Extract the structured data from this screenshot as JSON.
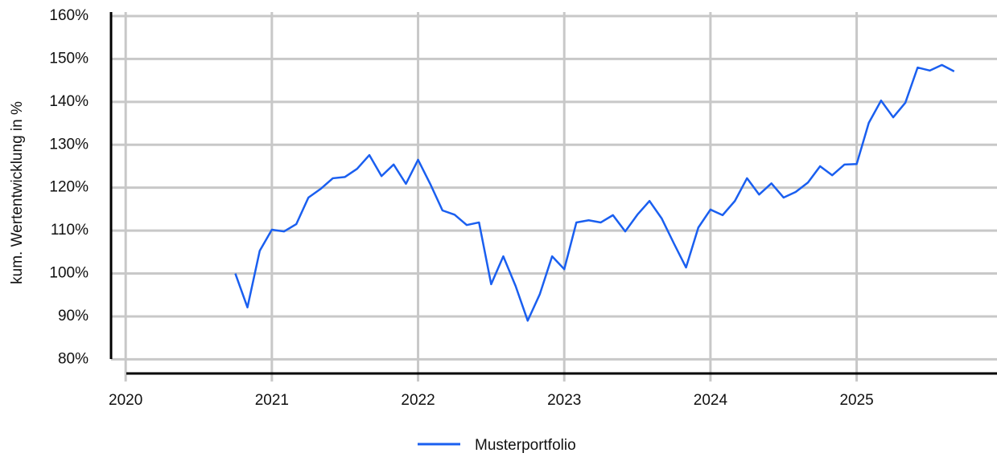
{
  "chart_data": {
    "type": "line",
    "y_label": "kum. Wertentwicklung in %",
    "x": [
      2020.75,
      2020.833,
      2020.917,
      2021,
      2021.083,
      2021.167,
      2021.25,
      2021.333,
      2021.417,
      2021.5,
      2021.583,
      2021.667,
      2021.75,
      2021.833,
      2021.917,
      2022,
      2022.083,
      2022.167,
      2022.25,
      2022.333,
      2022.417,
      2022.5,
      2022.583,
      2022.667,
      2022.75,
      2022.833,
      2022.917,
      2023,
      2023.083,
      2023.167,
      2023.25,
      2023.333,
      2023.417,
      2023.5,
      2023.583,
      2023.667,
      2023.75,
      2023.833,
      2023.917,
      2024,
      2024.083,
      2024.167,
      2024.25,
      2024.333,
      2024.417,
      2024.5,
      2024.583,
      2024.667,
      2024.75,
      2024.833,
      2024.917,
      2025,
      2025.083,
      2025.167,
      2025.25,
      2025.333,
      2025.417,
      2025.5,
      2025.583,
      2025.667
    ],
    "series": [
      {
        "name": "Musterportfolio",
        "color": "#1a5ff0",
        "values": [
          100,
          92.1,
          105.3,
          110.2,
          109.8,
          111.5,
          117.7,
          119.7,
          122.2,
          122.5,
          124.4,
          127.6,
          122.7,
          125.4,
          120.9,
          126.5,
          120.9,
          114.7,
          113.7,
          111.3,
          111.9,
          97.5,
          104,
          97.1,
          89.0,
          95.2,
          104,
          101,
          111.9,
          112.4,
          111.9,
          113.6,
          109.8,
          113.7,
          116.9,
          112.8,
          107,
          101.4,
          110.7,
          114.9,
          113.6,
          116.9,
          122.2,
          118.4,
          121.0,
          117.7,
          119.0,
          121.2,
          125.0,
          122.9,
          125.4,
          125.5,
          135.1,
          140.3,
          136.4,
          139.8,
          148.0,
          147.3,
          148.6,
          147.1
        ]
      }
    ],
    "xlim": [
      2019.9,
      2025.96
    ],
    "xticks": [
      2020,
      2021,
      2022,
      2023,
      2024,
      2025
    ],
    "ylim": [
      76.7,
      160
    ],
    "yticks": [
      {
        "value": 80,
        "label": "80%"
      },
      {
        "value": 90,
        "label": "90%"
      },
      {
        "value": 100,
        "label": "100%"
      },
      {
        "value": 110,
        "label": "110%"
      },
      {
        "value": 120,
        "label": "120%"
      },
      {
        "value": 130,
        "label": "130%"
      },
      {
        "value": 140,
        "label": "140%"
      },
      {
        "value": 150,
        "label": "150%"
      },
      {
        "value": 160,
        "label": "160%"
      }
    ],
    "grid": true,
    "legend": "bottom"
  }
}
